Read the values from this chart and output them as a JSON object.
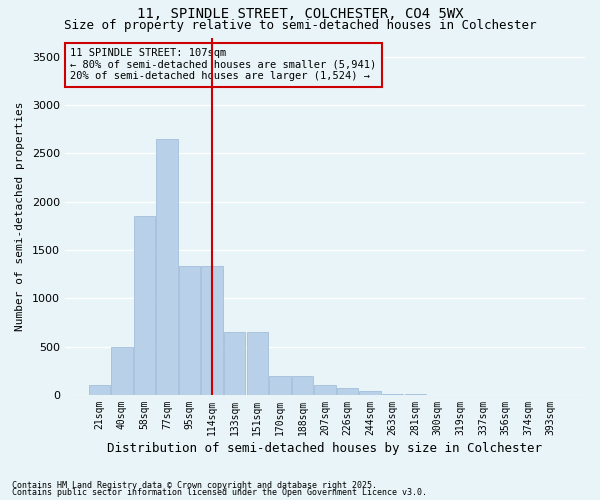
{
  "title1": "11, SPINDLE STREET, COLCHESTER, CO4 5WX",
  "title2": "Size of property relative to semi-detached houses in Colchester",
  "xlabel": "Distribution of semi-detached houses by size in Colchester",
  "ylabel": "Number of semi-detached properties",
  "categories": [
    "21sqm",
    "40sqm",
    "58sqm",
    "77sqm",
    "95sqm",
    "114sqm",
    "133sqm",
    "151sqm",
    "170sqm",
    "188sqm",
    "207sqm",
    "226sqm",
    "244sqm",
    "263sqm",
    "281sqm",
    "300sqm",
    "319sqm",
    "337sqm",
    "356sqm",
    "374sqm",
    "393sqm"
  ],
  "values": [
    100,
    500,
    1850,
    2650,
    1330,
    1330,
    650,
    650,
    200,
    200,
    100,
    70,
    40,
    10,
    5,
    3,
    2,
    1,
    0,
    0,
    0
  ],
  "bar_color": "#b8d0e8",
  "bar_edge_color": "#9ab8d8",
  "vline_index": 5,
  "vline_color": "#cc0000",
  "annotation_text": "11 SPINDLE STREET: 107sqm\n← 80% of semi-detached houses are smaller (5,941)\n20% of semi-detached houses are larger (1,524) →",
  "footnote1": "Contains HM Land Registry data © Crown copyright and database right 2025.",
  "footnote2": "Contains public sector information licensed under the Open Government Licence v3.0.",
  "ylim": [
    0,
    3700
  ],
  "yticks": [
    0,
    500,
    1000,
    1500,
    2000,
    2500,
    3000,
    3500
  ],
  "background_color": "#e8f4f8",
  "grid_color": "#ffffff",
  "title_fontsize": 10,
  "subtitle_fontsize": 9,
  "tick_fontsize": 7,
  "ylabel_fontsize": 8,
  "xlabel_fontsize": 9
}
